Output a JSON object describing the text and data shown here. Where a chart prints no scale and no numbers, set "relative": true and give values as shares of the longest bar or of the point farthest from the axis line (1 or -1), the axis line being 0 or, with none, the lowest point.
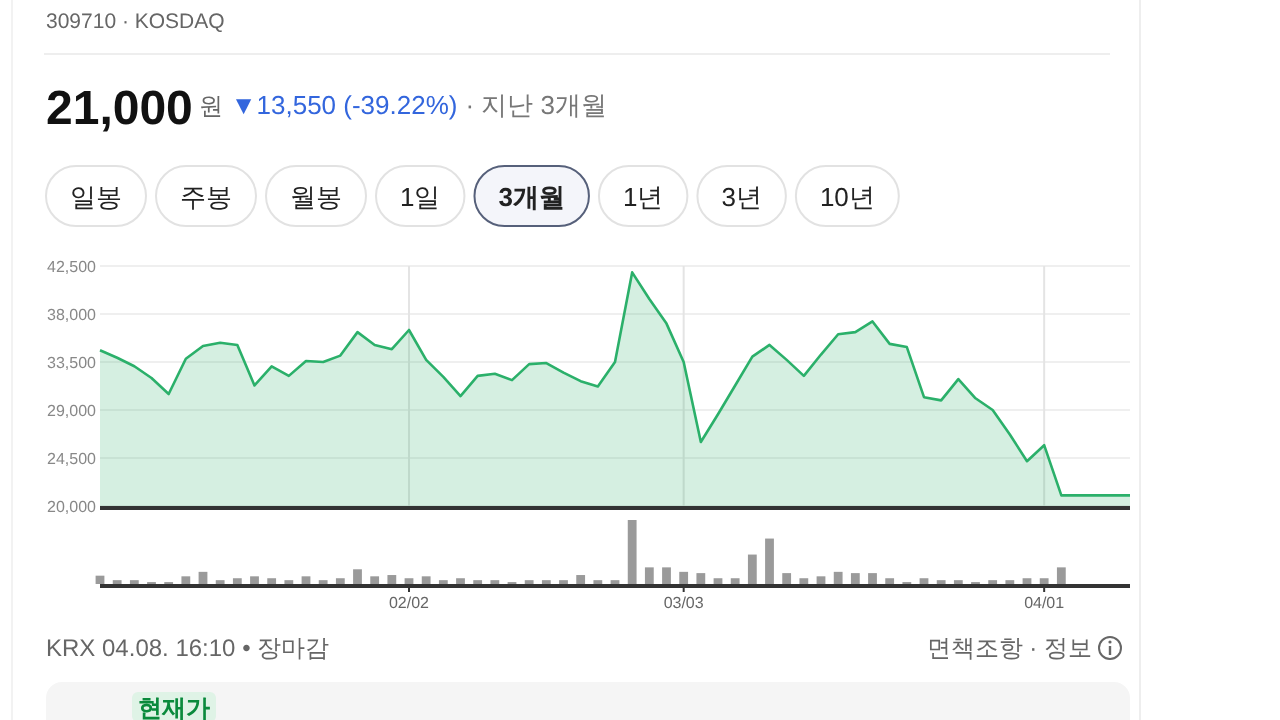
{
  "chart_data": [
    {
      "type": "area",
      "title": "309710 · KOSDAQ",
      "annotations": [
        "21,000",
        "원",
        "▼13,550 (-39.22%)",
        "· 지난 3개월",
        "일봉",
        "주봉",
        "월봉",
        "1일",
        "3개월",
        "1년",
        "3년",
        "10년"
      ],
      "categories": [
        null,
        null,
        null,
        null,
        null,
        null,
        null,
        null,
        null,
        null,
        null,
        null,
        null,
        null,
        null,
        null,
        null,
        null,
        null,
        null,
        null,
        null,
        null,
        null,
        null,
        null,
        null,
        null,
        null,
        null,
        null,
        null,
        null,
        null,
        null,
        null,
        null,
        null,
        null,
        null,
        null,
        null,
        null,
        null,
        null,
        null,
        null,
        null,
        null,
        null,
        null,
        null,
        null,
        null,
        null,
        null,
        null,
        null,
        null,
        null,
        null
      ],
      "series": [
        {
          "color": "#2bb06a",
          "values": [
            34600,
            33900,
            33100,
            32000,
            30500,
            33800,
            35000,
            35300,
            35100,
            31300,
            33100,
            32200,
            33600,
            33500,
            34100,
            36300,
            35100,
            34700,
            36500,
            33700,
            32100,
            30300,
            32200,
            32400,
            31800,
            33300,
            33400,
            32500,
            31700,
            31200,
            33500,
            41900,
            39400,
            37100,
            33500,
            26000,
            28600,
            31300,
            34000,
            35100,
            33700,
            32200,
            34200,
            36100,
            36300,
            37300,
            35200,
            34900,
            30200,
            29900,
            31900,
            30100,
            29000,
            26700,
            24200,
            25700,
            21000,
            21000,
            21000,
            21000,
            21000
          ]
        }
      ],
      "ylim": [
        20000,
        42500
      ],
      "yticks": [
        {
          "value": 20000,
          "label": "20,000"
        },
        {
          "value": 24500,
          "label": "24,500"
        },
        {
          "value": 29000,
          "label": "29,000"
        },
        {
          "value": 33500,
          "label": "33,500"
        },
        {
          "value": 38000,
          "label": "38,000"
        },
        {
          "value": 42500,
          "label": "42,500"
        }
      ],
      "grid": true,
      "tick_labels": "y"
    },
    {
      "type": "bar",
      "relative": true,
      "tick_labels": "x",
      "annotations": [
        "KRX 04.08. 16:10 • 장마감",
        "면책조항 · 정보",
        "현재가"
      ],
      "categories": [
        null,
        null,
        null,
        null,
        null,
        null,
        null,
        null,
        null,
        null,
        null,
        null,
        null,
        null,
        null,
        null,
        null,
        null,
        "02/02",
        null,
        null,
        null,
        null,
        null,
        null,
        null,
        null,
        null,
        null,
        null,
        null,
        null,
        null,
        null,
        "03/03",
        null,
        null,
        null,
        null,
        null,
        null,
        null,
        null,
        null,
        null,
        null,
        null,
        null,
        null,
        null,
        null,
        null,
        null,
        null,
        null,
        "04/01",
        null,
        null,
        null,
        null,
        null
      ],
      "series": [
        {
          "color": "#9a9a9a",
          "values": [
            0.13,
            0.06,
            0.06,
            0.03,
            0.03,
            0.12,
            0.19,
            0.06,
            0.09,
            0.12,
            0.09,
            0.06,
            0.12,
            0.06,
            0.09,
            0.23,
            0.12,
            0.14,
            0.09,
            0.12,
            0.06,
            0.09,
            0.06,
            0.06,
            0.03,
            0.06,
            0.06,
            0.06,
            0.14,
            0.06,
            0.06,
            1,
            0.26,
            0.26,
            0.19,
            0.17,
            0.09,
            0.09,
            0.46,
            0.71,
            0.17,
            0.09,
            0.12,
            0.19,
            0.17,
            0.17,
            0.09,
            0.03,
            0.09,
            0.06,
            0.06,
            0.03,
            0.06,
            0.06,
            0.09,
            0.09,
            0.26,
            null,
            null,
            null,
            null
          ]
        }
      ]
    }
  ]
}
